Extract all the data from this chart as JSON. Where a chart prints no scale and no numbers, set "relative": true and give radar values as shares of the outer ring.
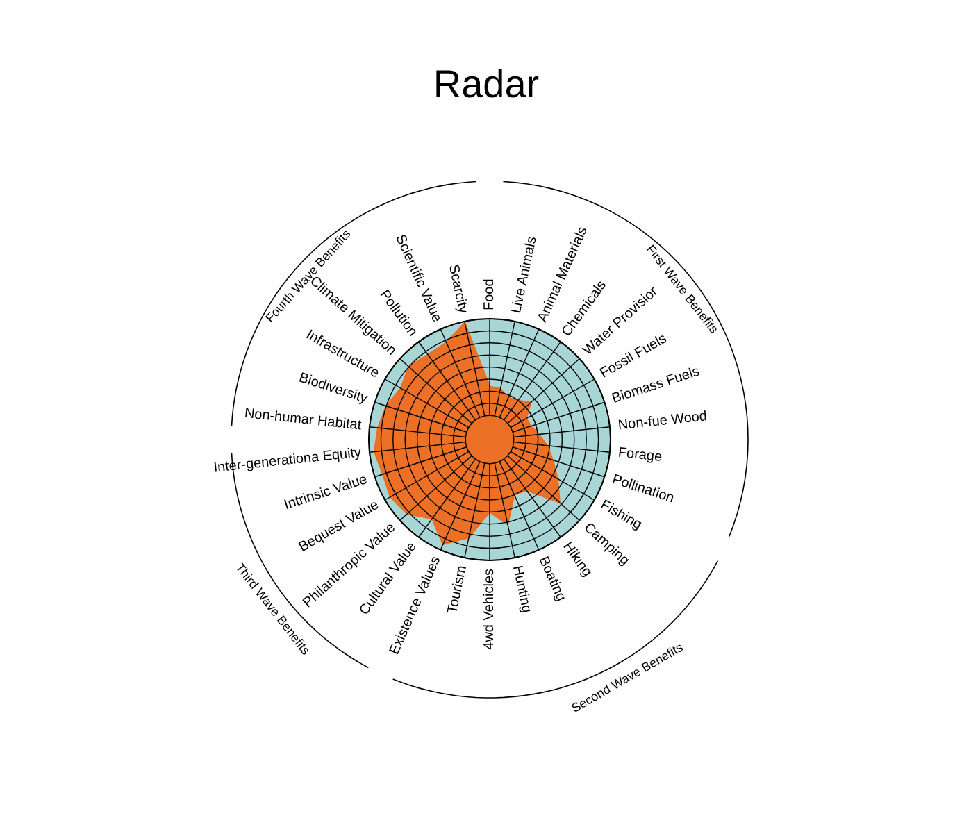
{
  "chart_data": {
    "type": "radar",
    "title": "Radar",
    "relative": true,
    "grid": true,
    "categories": [
      "Food",
      "Live Animals",
      "Animal Materials",
      "Chemicals",
      "Water Provisior",
      "Fossil Fuels",
      "Biomass Fuels",
      "Non-fue Wood",
      "Forage",
      "Pollination",
      "Fishing",
      "Camping",
      "Hiking",
      "Boating",
      "Hunting",
      "4wd Vehicles",
      "Tourism",
      "Existence Values",
      "Cultural Value",
      "Philanthropic Value",
      "Bequest Value",
      "Intrinsic Value",
      "Inter-generationa Equity",
      "Non-humar Habitat",
      "Biodiversity",
      "Infrastructure",
      "Climate Mitigation",
      "Pollution",
      "Scientific Value",
      "Scarcity"
    ],
    "series": [
      {
        "color": "#f06a1e",
        "values": [
          0.44,
          0.43,
          0.38,
          0.4,
          0.46,
          0.35,
          0.36,
          0.41,
          0.48,
          0.55,
          0.65,
          0.78,
          0.52,
          0.5,
          0.72,
          0.6,
          0.83,
          0.95,
          0.81,
          0.92,
          0.95,
          0.93,
          0.96,
          0.93,
          0.9,
          0.85,
          0.9,
          0.87,
          0.88,
          0.99
        ]
      }
    ],
    "annotations": [
      "First Wave Benefits",
      "Second Wave Benefits",
      "Third Wave Benefits",
      "Fourth Wave Benefits"
    ]
  }
}
